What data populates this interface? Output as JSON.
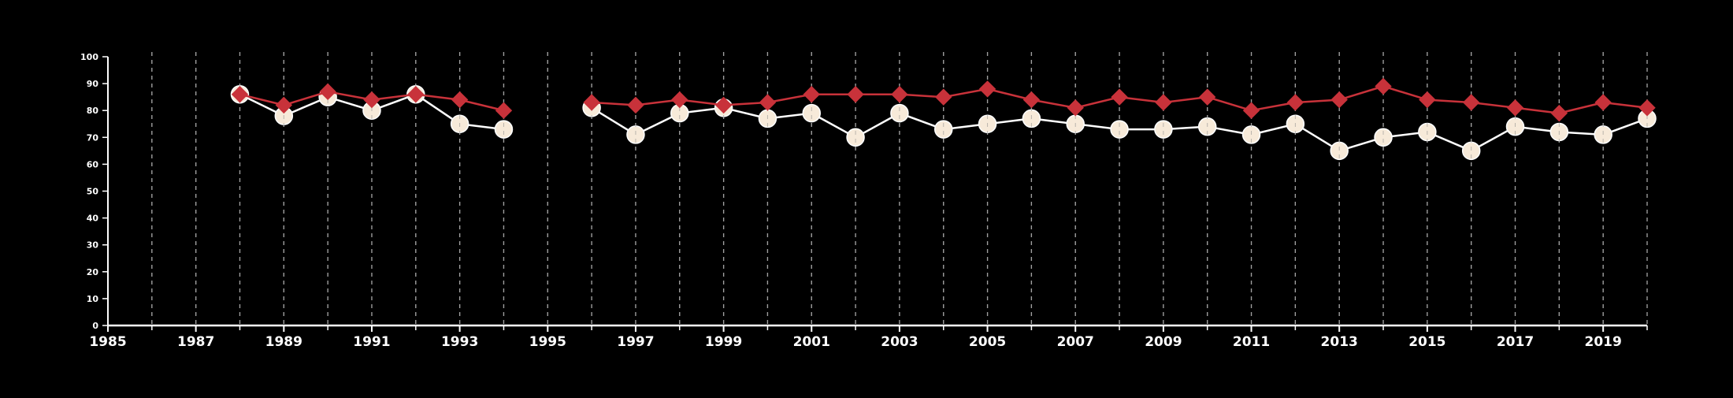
{
  "chart_data": {
    "type": "line",
    "title": "",
    "xlabel": "",
    "ylabel": "",
    "xlim": [
      1985,
      2020
    ],
    "ylim": [
      0,
      100
    ],
    "x_ticks": [
      1985,
      1987,
      1989,
      1991,
      1993,
      1995,
      1997,
      1999,
      2001,
      2003,
      2005,
      2007,
      2009,
      2011,
      2013,
      2015,
      2017,
      2019
    ],
    "y_ticks": [
      0,
      10,
      20,
      30,
      40,
      50,
      60,
      70,
      80,
      90,
      100
    ],
    "grid": "vertical-dashed",
    "gridlines_x": [
      1986,
      1987,
      1988,
      1989,
      1990,
      1991,
      1992,
      1993,
      1994,
      1995,
      1996,
      1997,
      1998,
      1999,
      2000,
      2001,
      2002,
      2003,
      2004,
      2005,
      2006,
      2007,
      2008,
      2009,
      2010,
      2011,
      2012,
      2013,
      2014,
      2015,
      2016,
      2017,
      2018,
      2019,
      2020
    ],
    "series": [
      {
        "marker": "diamond",
        "color": "#c8323a",
        "points": [
          {
            "x": 1988,
            "y": 86
          },
          {
            "x": 1989,
            "y": 82
          },
          {
            "x": 1990,
            "y": 87
          },
          {
            "x": 1991,
            "y": 84
          },
          {
            "x": 1992,
            "y": 86
          },
          {
            "x": 1993,
            "y": 84
          },
          {
            "x": 1994,
            "y": 80
          },
          {
            "x": 1995,
            "y": null
          },
          {
            "x": 1996,
            "y": 83
          },
          {
            "x": 1997,
            "y": 82
          },
          {
            "x": 1998,
            "y": 84
          },
          {
            "x": 1999,
            "y": 82
          },
          {
            "x": 2000,
            "y": 83
          },
          {
            "x": 2001,
            "y": 86
          },
          {
            "x": 2002,
            "y": 86
          },
          {
            "x": 2003,
            "y": 86
          },
          {
            "x": 2004,
            "y": 85
          },
          {
            "x": 2005,
            "y": 88
          },
          {
            "x": 2006,
            "y": 84
          },
          {
            "x": 2007,
            "y": 81
          },
          {
            "x": 2008,
            "y": 85
          },
          {
            "x": 2009,
            "y": 83
          },
          {
            "x": 2010,
            "y": 85
          },
          {
            "x": 2011,
            "y": 80
          },
          {
            "x": 2012,
            "y": 83
          },
          {
            "x": 2013,
            "y": 84
          },
          {
            "x": 2014,
            "y": 89
          },
          {
            "x": 2015,
            "y": 84
          },
          {
            "x": 2016,
            "y": 83
          },
          {
            "x": 2017,
            "y": 81
          },
          {
            "x": 2018,
            "y": 79
          },
          {
            "x": 2019,
            "y": 83
          },
          {
            "x": 2020,
            "y": 81
          }
        ]
      },
      {
        "marker": "circle",
        "color": "#f7ead9",
        "line_color": "#ffffff",
        "points": [
          {
            "x": 1988,
            "y": 86
          },
          {
            "x": 1989,
            "y": 78
          },
          {
            "x": 1990,
            "y": 85
          },
          {
            "x": 1991,
            "y": 80
          },
          {
            "x": 1992,
            "y": 86
          },
          {
            "x": 1993,
            "y": 75
          },
          {
            "x": 1994,
            "y": 73
          },
          {
            "x": 1995,
            "y": null
          },
          {
            "x": 1996,
            "y": 81
          },
          {
            "x": 1997,
            "y": 71
          },
          {
            "x": 1998,
            "y": 79
          },
          {
            "x": 1999,
            "y": 81
          },
          {
            "x": 2000,
            "y": 77
          },
          {
            "x": 2001,
            "y": 79
          },
          {
            "x": 2002,
            "y": 70
          },
          {
            "x": 2003,
            "y": 79
          },
          {
            "x": 2004,
            "y": 73
          },
          {
            "x": 2005,
            "y": 75
          },
          {
            "x": 2006,
            "y": 77
          },
          {
            "x": 2007,
            "y": 75
          },
          {
            "x": 2008,
            "y": 73
          },
          {
            "x": 2009,
            "y": 73
          },
          {
            "x": 2010,
            "y": 74
          },
          {
            "x": 2011,
            "y": 71
          },
          {
            "x": 2012,
            "y": 75
          },
          {
            "x": 2013,
            "y": 65
          },
          {
            "x": 2014,
            "y": 70
          },
          {
            "x": 2015,
            "y": 72
          },
          {
            "x": 2016,
            "y": 65
          },
          {
            "x": 2017,
            "y": 74
          },
          {
            "x": 2018,
            "y": 72
          },
          {
            "x": 2019,
            "y": 71
          },
          {
            "x": 2020,
            "y": 77
          }
        ]
      }
    ]
  },
  "colors": {
    "background": "#000000",
    "axis": "#ffffff",
    "grid": "#bbbbbb"
  }
}
